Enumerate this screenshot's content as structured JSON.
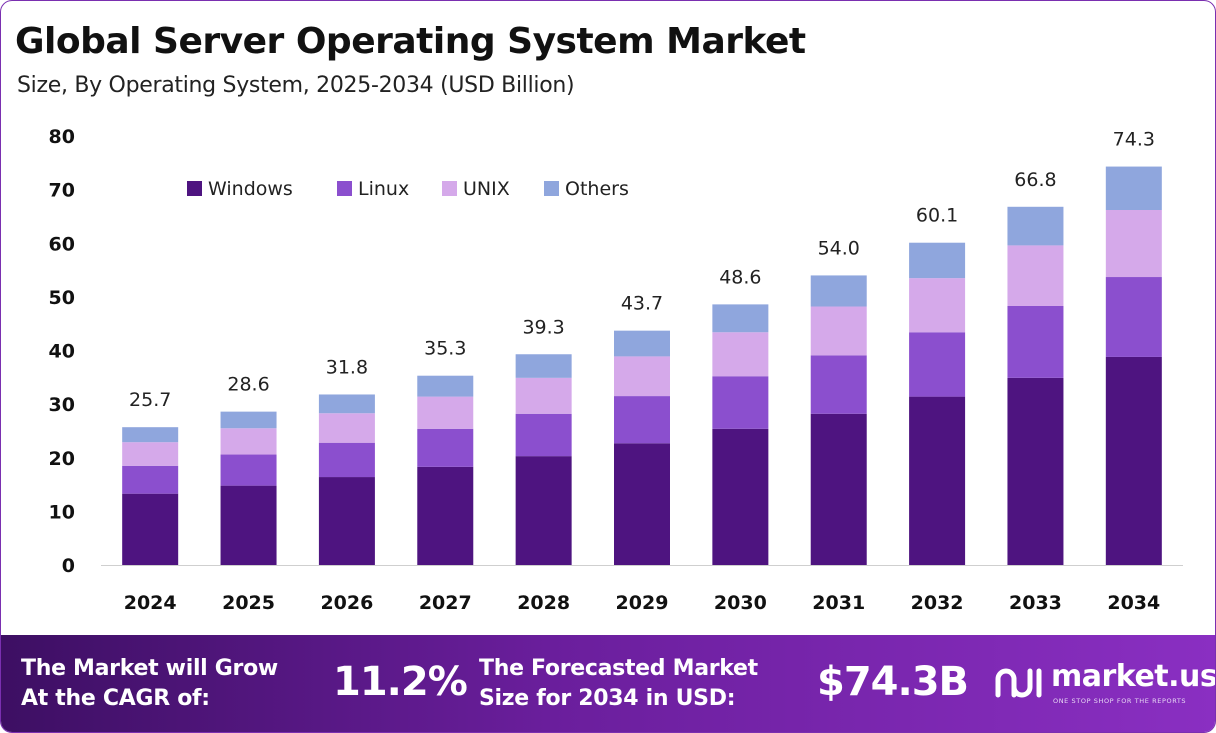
{
  "header": {
    "title": "Global Server Operating System Market",
    "subtitle": "Size, By Operating System, 2025-2034 (USD Billion)"
  },
  "chart_data": {
    "type": "bar",
    "stacked": true,
    "categories": [
      "2024",
      "2025",
      "2026",
      "2027",
      "2028",
      "2029",
      "2030",
      "2031",
      "2032",
      "2033",
      "2034"
    ],
    "series": [
      {
        "name": "Windows",
        "color": "#4e1480",
        "values": [
          13.3,
          14.8,
          16.4,
          18.3,
          20.3,
          22.7,
          25.4,
          28.2,
          31.4,
          34.9,
          38.8
        ]
      },
      {
        "name": "Linux",
        "color": "#8b4fce",
        "values": [
          5.2,
          5.8,
          6.4,
          7.1,
          7.9,
          8.8,
          9.8,
          10.9,
          12.0,
          13.4,
          14.9
        ]
      },
      {
        "name": "UNIX",
        "color": "#d5a9ea",
        "values": [
          4.4,
          4.9,
          5.5,
          6.0,
          6.7,
          7.4,
          8.2,
          9.1,
          10.1,
          11.3,
          12.5
        ]
      },
      {
        "name": "Others",
        "color": "#8fa6dd",
        "values": [
          2.8,
          3.1,
          3.5,
          3.9,
          4.4,
          4.8,
          5.2,
          5.8,
          6.6,
          7.2,
          8.1
        ]
      }
    ],
    "totals": [
      "25.7",
      "28.6",
      "31.8",
      "35.3",
      "39.3",
      "43.7",
      "48.6",
      "54.0",
      "60.1",
      "66.8",
      "74.3"
    ],
    "y_ticks": [
      "0",
      "10",
      "20",
      "30",
      "40",
      "50",
      "60",
      "70",
      "80"
    ],
    "ylim": [
      0,
      80
    ],
    "grid": false,
    "legend_position": "top-left"
  },
  "footer": {
    "cagr_label_line1": "The Market will Grow",
    "cagr_label_line2": "At the CAGR of:",
    "cagr_value": "11.2%",
    "forecast_label_line1": "The Forecasted Market",
    "forecast_label_line2": "Size for 2034 in USD:",
    "forecast_value": "$74.3B",
    "brand_name": "market.us",
    "brand_tagline": "ONE STOP SHOP FOR THE REPORTS"
  }
}
